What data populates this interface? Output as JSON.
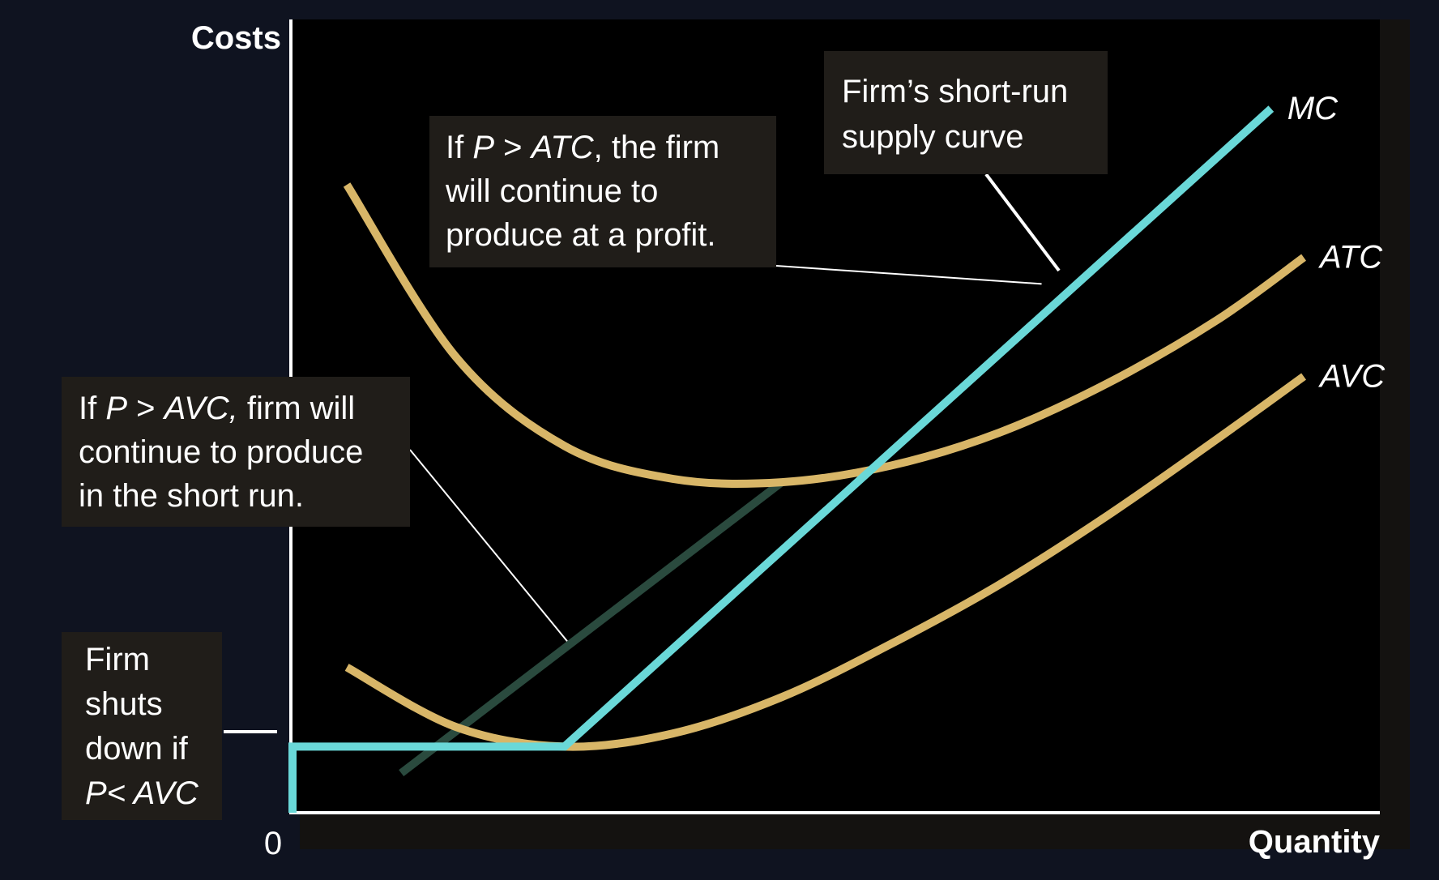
{
  "chart_data": {
    "type": "line",
    "title": "",
    "xlabel": "Quantity",
    "ylabel": "Costs",
    "origin_label": "0",
    "series": [
      {
        "name": "MC",
        "color": "#6ad8d8",
        "points": [
          [
            1.0,
            0.6
          ],
          [
            4.5,
            5.0
          ],
          [
            9.0,
            10.65
          ]
        ]
      },
      {
        "name": "ATC",
        "color": "#d8b668",
        "points": [
          [
            0.5,
            9.5
          ],
          [
            1.5,
            6.9
          ],
          [
            2.5,
            5.55
          ],
          [
            3.5,
            5.05
          ],
          [
            4.5,
            5.0
          ],
          [
            5.5,
            5.25
          ],
          [
            6.5,
            5.75
          ],
          [
            7.5,
            6.5
          ],
          [
            8.5,
            7.45
          ],
          [
            9.3,
            8.4
          ]
        ]
      },
      {
        "name": "AVC",
        "color": "#d8b668",
        "points": [
          [
            0.5,
            2.2
          ],
          [
            1.5,
            1.3
          ],
          [
            2.5,
            1.0
          ],
          [
            3.5,
            1.2
          ],
          [
            4.5,
            1.75
          ],
          [
            5.5,
            2.55
          ],
          [
            6.5,
            3.45
          ],
          [
            7.5,
            4.5
          ],
          [
            8.5,
            5.65
          ],
          [
            9.3,
            6.6
          ]
        ]
      }
    ],
    "supply_curve": {
      "color": "#6ad8d8",
      "points": [
        [
          0.0,
          0.0
        ],
        [
          0.0,
          1.0
        ],
        [
          2.5,
          1.0
        ],
        [
          9.0,
          10.65
        ]
      ]
    },
    "xlim": [
      0,
      10
    ],
    "ylim": [
      0,
      12
    ],
    "grid": false,
    "legend": "none",
    "annotations": [
      {
        "id": "supply",
        "lines": [
          [
            "Firm’s short-run"
          ],
          [
            "supply curve"
          ]
        ]
      },
      {
        "id": "atc",
        "lines": [
          [
            "If ",
            {
              "i": "P"
            },
            " > ",
            {
              "i": "ATC"
            },
            ", the firm"
          ],
          [
            "will continue to"
          ],
          [
            "produce at a profit."
          ]
        ]
      },
      {
        "id": "avc",
        "lines": [
          [
            "If ",
            {
              "i": "P"
            },
            " > ",
            {
              "i": "AVC,"
            },
            " firm will"
          ],
          [
            "continue to produce"
          ],
          [
            "in the short run."
          ]
        ]
      },
      {
        "id": "shutdown",
        "lines": [
          [
            "Firm"
          ],
          [
            "shuts"
          ],
          [
            "down if"
          ],
          [
            {
              "i": "P< AVC"
            }
          ]
        ]
      }
    ]
  }
}
